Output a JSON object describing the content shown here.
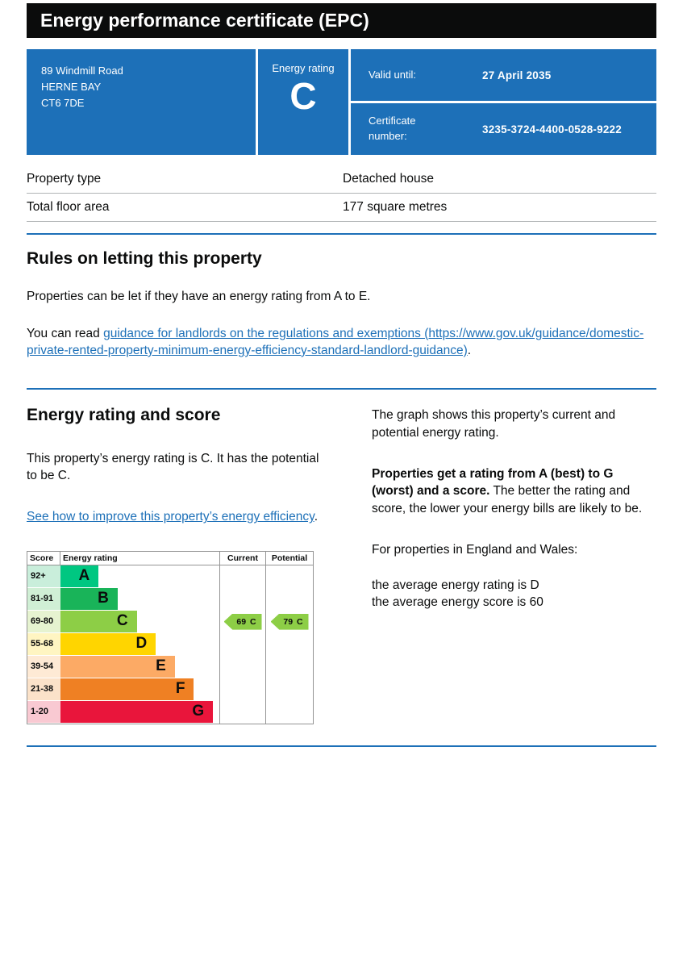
{
  "header": {
    "title": "Energy performance certificate (EPC)"
  },
  "summary": {
    "address_lines": [
      "89 Windmill Road",
      "HERNE BAY",
      "CT6 7DE"
    ],
    "energy_rating_label": "Energy rating",
    "energy_rating": "C",
    "valid_until_label": "Valid until:",
    "valid_until": "27 April 2035",
    "certificate_number_label": "Certificate number:",
    "certificate_number": "3235-3724-4400-0528-9222"
  },
  "property_details": {
    "rows": [
      {
        "label": "Property type",
        "value": "Detached house"
      },
      {
        "label": "Total floor area",
        "value": "177 square metres"
      }
    ]
  },
  "rules_section": {
    "heading": "Rules on letting this property",
    "paragraph1": "Properties can be let if they have an energy rating from A to E.",
    "read_prefix": "You can read ",
    "link_text": "guidance for landlords on the regulations and exemptions (https://www.gov.uk/guidance/domestic-private-rented-property-minimum-energy-efficiency-standard-landlord-guidance)",
    "suffix": "."
  },
  "rating_section": {
    "heading": "Energy rating and score",
    "intro": "This property’s energy rating is C. It has the potential to be C.",
    "improve_link": "See how to improve this property’s energy efficiency",
    "improve_suffix": ".",
    "graph_intro": "The graph shows this property’s current and potential energy rating.",
    "ratings_bold": "Properties get a rating from A (best) to G (worst) and a score.",
    "ratings_rest": " The better the rating and score, the lower your energy bills are likely to be.",
    "england_wales": "For properties in England and Wales:",
    "avg_rating_line": "the average energy rating is D",
    "avg_score_line": "the average energy score is 60"
  },
  "chart_data": {
    "type": "epc-bands",
    "headers": {
      "score": "Score",
      "rating": "Energy rating",
      "current": "Current",
      "potential": "Potential"
    },
    "bands": [
      {
        "score_range": "92+",
        "letter": "A",
        "color": "#00c781",
        "tint": "#c9eedb",
        "width_pct": 24
      },
      {
        "score_range": "81-91",
        "letter": "B",
        "color": "#19b459",
        "tint": "#d0efd5",
        "width_pct": 36
      },
      {
        "score_range": "69-80",
        "letter": "C",
        "color": "#8dce46",
        "tint": "#e6f3d0",
        "width_pct": 48
      },
      {
        "score_range": "55-68",
        "letter": "D",
        "color": "#ffd500",
        "tint": "#fff5c2",
        "width_pct": 60
      },
      {
        "score_range": "39-54",
        "letter": "E",
        "color": "#fcaa65",
        "tint": "#feead5",
        "width_pct": 72
      },
      {
        "score_range": "21-38",
        "letter": "F",
        "color": "#ef8023",
        "tint": "#fbe2c9",
        "width_pct": 84
      },
      {
        "score_range": "1-20",
        "letter": "G",
        "color": "#e9153b",
        "tint": "#f9c9d2",
        "width_pct": 96
      }
    ],
    "current": {
      "score": "69",
      "rating": "C",
      "band_index": 2,
      "color": "#8dce46"
    },
    "potential": {
      "score": "79",
      "rating": "C",
      "band_index": 2,
      "color": "#8dce46"
    },
    "axis_note": "bands ordered best (A, 92+) to worst (G, 1-20)"
  },
  "colors": {
    "accent_blue": "#1d70b8",
    "header_bg": "#0b0c0c",
    "link": "#1d70b8",
    "row_border": "#b1b4b6",
    "chart_border": "#949494"
  }
}
